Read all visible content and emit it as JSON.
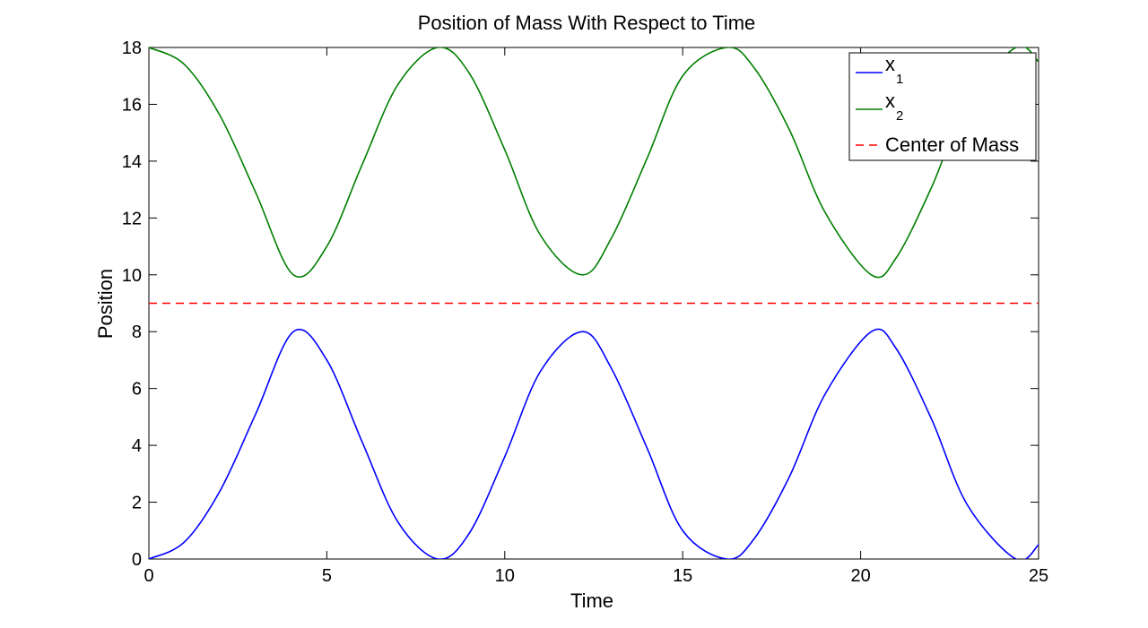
{
  "chart_data": {
    "type": "line",
    "title": "Position of Mass With Respect to Time",
    "xlabel": "Time",
    "ylabel": "Position",
    "xlim": [
      0,
      25
    ],
    "ylim": [
      0,
      18
    ],
    "xticks": [
      0,
      5,
      10,
      15,
      20,
      25
    ],
    "yticks": [
      0,
      2,
      4,
      6,
      8,
      10,
      12,
      14,
      16,
      18
    ],
    "grid": false,
    "legend_position": "top-right",
    "series": [
      {
        "name": "x",
        "subscript": "1",
        "color": "#0000ff",
        "style": "solid",
        "x": [
          0,
          1,
          2,
          3,
          4.06,
          5,
          6,
          7,
          8.12,
          9,
          10,
          11,
          12.18,
          13,
          14,
          15,
          16.24,
          17,
          18,
          19,
          20.3,
          21,
          22,
          23,
          24.36,
          25
        ],
        "values": [
          0,
          0.6,
          2.4,
          5.1,
          8,
          7.0,
          4.1,
          1.3,
          0,
          0.9,
          3.6,
          6.6,
          8,
          6.7,
          3.9,
          1.0,
          0,
          0.7,
          2.9,
          5.8,
          8,
          7.4,
          4.9,
          1.9,
          0,
          0.5
        ]
      },
      {
        "name": "x",
        "subscript": "2",
        "color": "#007f00",
        "style": "solid",
        "x": [
          0,
          1,
          2,
          3,
          4.06,
          5,
          6,
          7,
          8.12,
          9,
          10,
          11,
          12.18,
          13,
          14,
          15,
          16.24,
          17,
          18,
          19,
          20.3,
          21,
          22,
          23,
          24.36,
          25
        ],
        "values": [
          18,
          17.4,
          15.6,
          12.9,
          10,
          11.0,
          13.9,
          16.7,
          18,
          17.1,
          14.4,
          11.4,
          10,
          11.3,
          14.1,
          17.0,
          18,
          17.3,
          15.1,
          12.2,
          10,
          10.6,
          13.1,
          16.1,
          18,
          17.5
        ]
      },
      {
        "name": "Center of Mass",
        "color": "#ff0000",
        "style": "dashed",
        "x": [
          0,
          25
        ],
        "values": [
          9,
          9
        ]
      }
    ]
  }
}
